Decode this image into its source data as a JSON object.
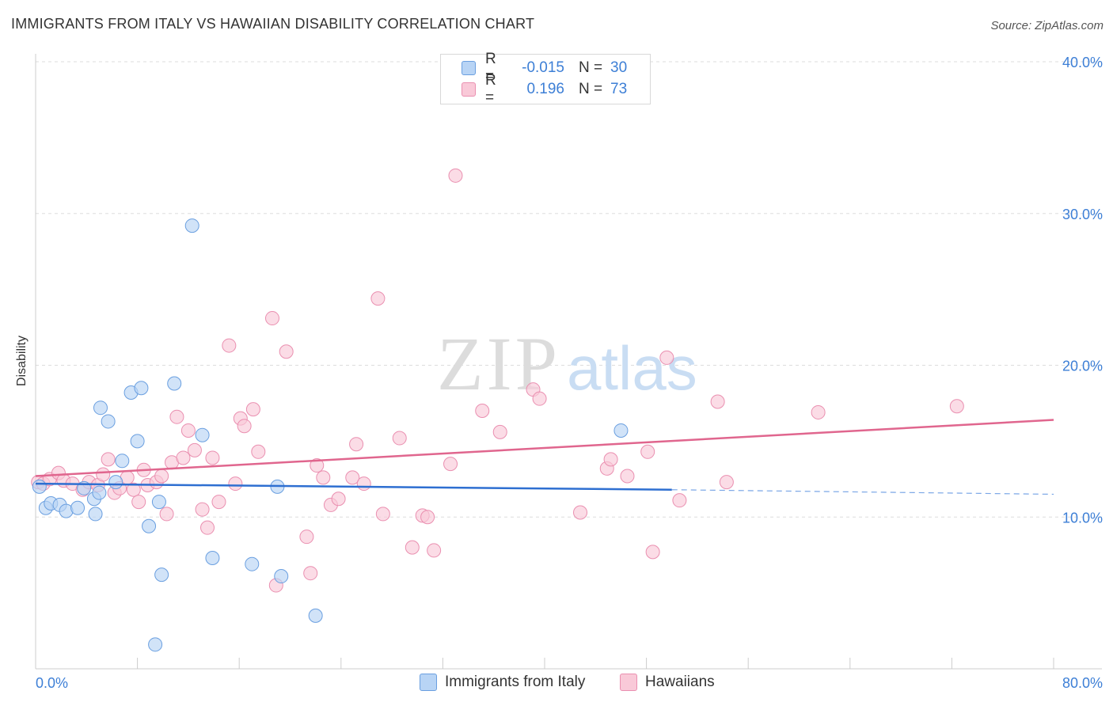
{
  "header": {
    "title": "IMMIGRANTS FROM ITALY VS HAWAIIAN DISABILITY CORRELATION CHART",
    "source": "Source: ZipAtlas.com"
  },
  "watermark": {
    "zip": "ZIP",
    "atlas": "atlas"
  },
  "legend": {
    "r_label": "R =",
    "n_label": "N =",
    "rows": [
      {
        "r": "-0.015",
        "n": "30",
        "color": "#6a9fe0"
      },
      {
        "r": "0.196",
        "n": "73",
        "color": "#ea8fb0"
      }
    ]
  },
  "chart_data": {
    "type": "scatter",
    "title": "IMMIGRANTS FROM ITALY VS HAWAIIAN DISABILITY CORRELATION CHART",
    "xlabel": "",
    "ylabel": "Disability",
    "xlim": [
      0,
      80
    ],
    "ylim": [
      0,
      40
    ],
    "x_tick_labels": [
      "0.0%",
      "80.0%"
    ],
    "y_tick_labels": [
      "10.0%",
      "20.0%",
      "30.0%",
      "40.0%"
    ],
    "y_ticks": [
      10,
      20,
      30,
      40
    ],
    "grid": true,
    "legend_position": "top-center",
    "series": [
      {
        "name": "Immigrants from Italy",
        "color": "#6a9fe0",
        "fill": "#b8d4f5",
        "trend_solid": [
          [
            0,
            12.2
          ],
          [
            50,
            11.8
          ]
        ],
        "trend_dashed": [
          [
            50,
            11.8
          ],
          [
            80,
            11.5
          ]
        ],
        "points": [
          [
            0.3,
            12.0
          ],
          [
            0.8,
            10.6
          ],
          [
            1.2,
            10.9
          ],
          [
            1.9,
            10.8
          ],
          [
            2.4,
            10.4
          ],
          [
            3.3,
            10.6
          ],
          [
            3.8,
            11.9
          ],
          [
            4.6,
            11.2
          ],
          [
            5.0,
            11.6
          ],
          [
            4.7,
            10.2
          ],
          [
            5.1,
            17.2
          ],
          [
            5.7,
            16.3
          ],
          [
            6.3,
            12.3
          ],
          [
            6.8,
            13.7
          ],
          [
            7.5,
            18.2
          ],
          [
            8.0,
            15.0
          ],
          [
            8.3,
            18.5
          ],
          [
            8.9,
            9.4
          ],
          [
            9.7,
            11.0
          ],
          [
            9.9,
            6.2
          ],
          [
            10.9,
            18.8
          ],
          [
            12.3,
            29.2
          ],
          [
            13.1,
            15.4
          ],
          [
            13.9,
            7.3
          ],
          [
            17.0,
            6.9
          ],
          [
            19.0,
            12.0
          ],
          [
            19.3,
            6.1
          ],
          [
            22.0,
            3.5
          ],
          [
            9.4,
            1.6
          ],
          [
            46.0,
            15.7
          ]
        ]
      },
      {
        "name": "Hawaiians",
        "color": "#ea8fb0",
        "fill": "#f9c9d8",
        "trend_solid": [
          [
            0,
            12.7
          ],
          [
            80,
            16.4
          ]
        ],
        "points": [
          [
            0.2,
            12.3
          ],
          [
            0.6,
            12.2
          ],
          [
            1.1,
            12.5
          ],
          [
            1.8,
            12.9
          ],
          [
            2.2,
            12.4
          ],
          [
            2.9,
            12.2
          ],
          [
            3.7,
            11.8
          ],
          [
            4.2,
            12.3
          ],
          [
            4.9,
            12.1
          ],
          [
            5.3,
            12.8
          ],
          [
            5.7,
            13.8
          ],
          [
            6.2,
            11.6
          ],
          [
            6.6,
            11.9
          ],
          [
            7.2,
            12.6
          ],
          [
            7.7,
            11.8
          ],
          [
            8.1,
            11.0
          ],
          [
            8.5,
            13.1
          ],
          [
            8.8,
            12.1
          ],
          [
            9.5,
            12.3
          ],
          [
            9.9,
            12.7
          ],
          [
            10.3,
            10.2
          ],
          [
            10.7,
            13.6
          ],
          [
            11.1,
            16.6
          ],
          [
            11.6,
            13.9
          ],
          [
            12.0,
            15.7
          ],
          [
            12.5,
            14.4
          ],
          [
            13.1,
            10.5
          ],
          [
            13.5,
            9.3
          ],
          [
            13.9,
            13.9
          ],
          [
            14.4,
            11.0
          ],
          [
            15.2,
            21.3
          ],
          [
            15.7,
            12.2
          ],
          [
            16.1,
            16.5
          ],
          [
            16.4,
            16.0
          ],
          [
            17.1,
            17.1
          ],
          [
            17.5,
            14.3
          ],
          [
            18.6,
            23.1
          ],
          [
            18.9,
            5.5
          ],
          [
            19.7,
            20.9
          ],
          [
            21.3,
            8.7
          ],
          [
            21.6,
            6.3
          ],
          [
            22.1,
            13.4
          ],
          [
            22.6,
            12.6
          ],
          [
            23.2,
            10.8
          ],
          [
            23.8,
            11.2
          ],
          [
            24.9,
            12.6
          ],
          [
            25.2,
            14.8
          ],
          [
            25.8,
            12.2
          ],
          [
            26.9,
            24.4
          ],
          [
            27.3,
            10.2
          ],
          [
            28.6,
            15.2
          ],
          [
            29.6,
            8.0
          ],
          [
            30.4,
            10.1
          ],
          [
            30.8,
            10.0
          ],
          [
            31.3,
            7.8
          ],
          [
            32.6,
            13.5
          ],
          [
            33.0,
            32.5
          ],
          [
            35.1,
            17.0
          ],
          [
            36.5,
            15.6
          ],
          [
            39.1,
            18.4
          ],
          [
            39.6,
            17.8
          ],
          [
            42.8,
            10.3
          ],
          [
            44.9,
            13.2
          ],
          [
            45.2,
            13.8
          ],
          [
            46.5,
            12.7
          ],
          [
            48.1,
            14.3
          ],
          [
            48.5,
            7.7
          ],
          [
            49.6,
            20.5
          ],
          [
            50.6,
            11.1
          ],
          [
            53.6,
            17.6
          ],
          [
            54.3,
            12.3
          ],
          [
            61.5,
            16.9
          ],
          [
            72.4,
            17.3
          ]
        ]
      }
    ]
  }
}
